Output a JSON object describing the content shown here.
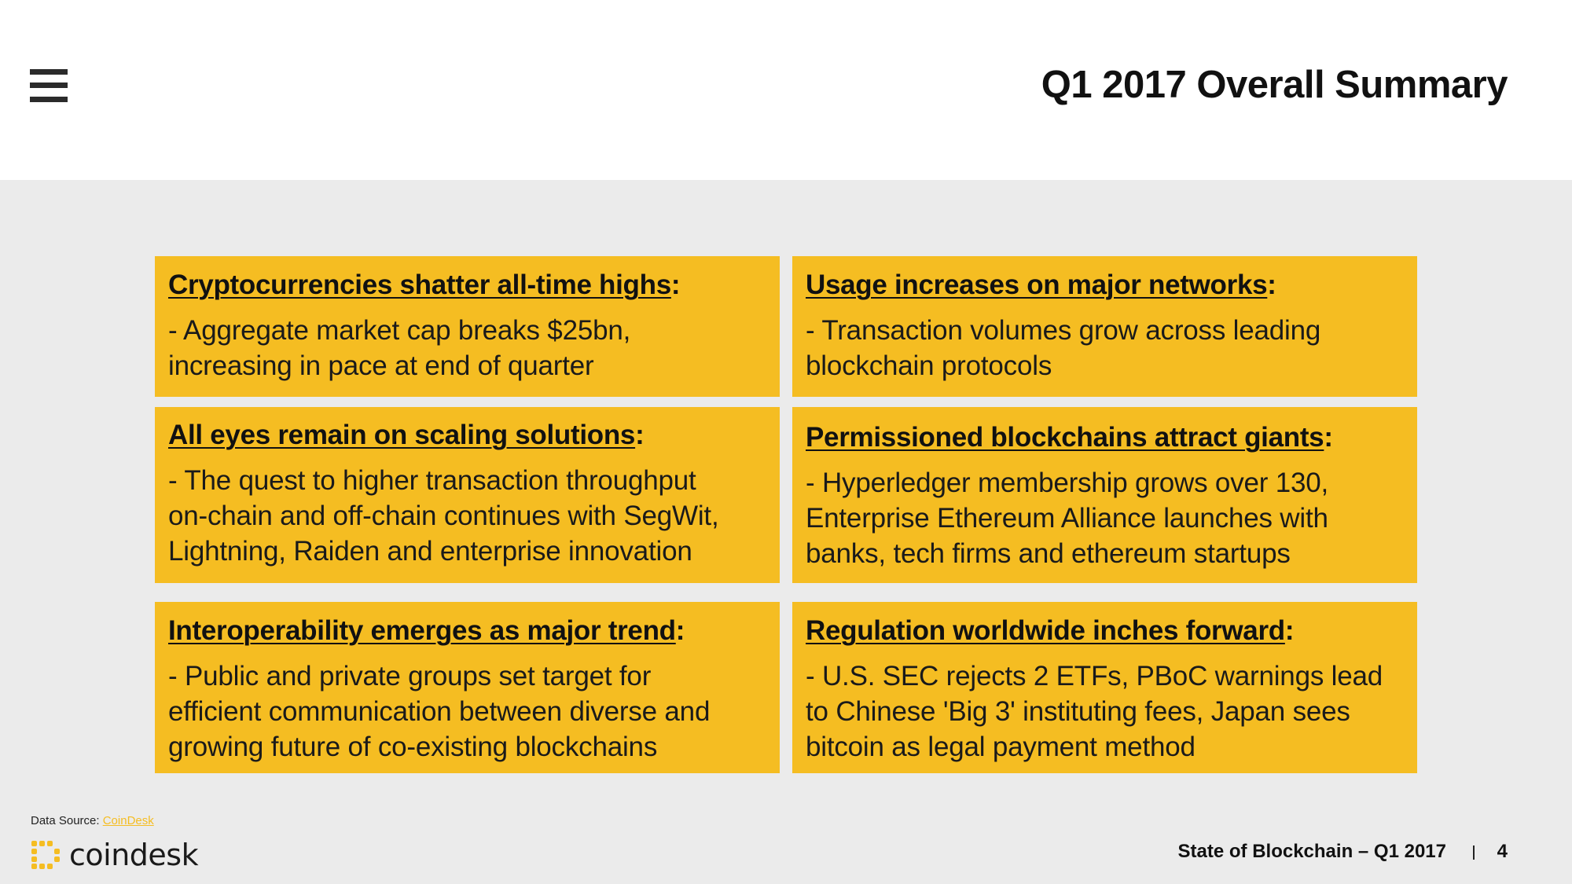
{
  "header": {
    "title": "Q1 2017 Overall Summary",
    "menu_icon": "hamburger-menu-icon"
  },
  "cards": [
    {
      "title": "Cryptocurrencies shatter all-time highs",
      "punct": ":",
      "lines": [
        "- Aggregate market cap breaks $25bn,",
        "increasing in pace at end of quarter"
      ]
    },
    {
      "title": "Usage increases on major networks",
      "punct": ":",
      "lines": [
        "- Transaction volumes grow across leading",
        "blockchain protocols"
      ]
    },
    {
      "title": "All eyes remain on scaling solutions",
      "punct": ":",
      "lines": [
        "- The quest to higher transaction throughput",
        "on-chain and off-chain continues with SegWit,",
        "Lightning, Raiden and enterprise innovation"
      ]
    },
    {
      "title": "Permissioned blockchains attract giants",
      "punct": ":",
      "lines": [
        "- Hyperledger membership grows over 130,",
        "Enterprise Ethereum Alliance launches with",
        "banks, tech firms and ethereum startups"
      ]
    },
    {
      "title": "Interoperability emerges as major trend",
      "punct": ":",
      "lines": [
        "- Public and private groups set target for",
        "efficient communication between diverse and",
        "growing future of co-existing blockchains"
      ]
    },
    {
      "title": "Regulation worldwide inches forward",
      "punct": ":",
      "lines": [
        "- U.S. SEC rejects 2 ETFs, PBoC warnings lead",
        "to Chinese 'Big 3' instituting fees, Japan sees",
        "bitcoin as legal payment method"
      ]
    }
  ],
  "footer": {
    "source_label": "Data Source:",
    "source_link": "CoinDesk",
    "logo_text": "coindesk",
    "logo_icon": "coindesk-logo-icon",
    "report_title": "State of Blockchain – Q1 2017",
    "page_number": "4"
  },
  "colors": {
    "card_background": "#f5bd22",
    "page_background": "#ebebeb",
    "header_background": "#ffffff",
    "accent": "#f5bd22"
  }
}
